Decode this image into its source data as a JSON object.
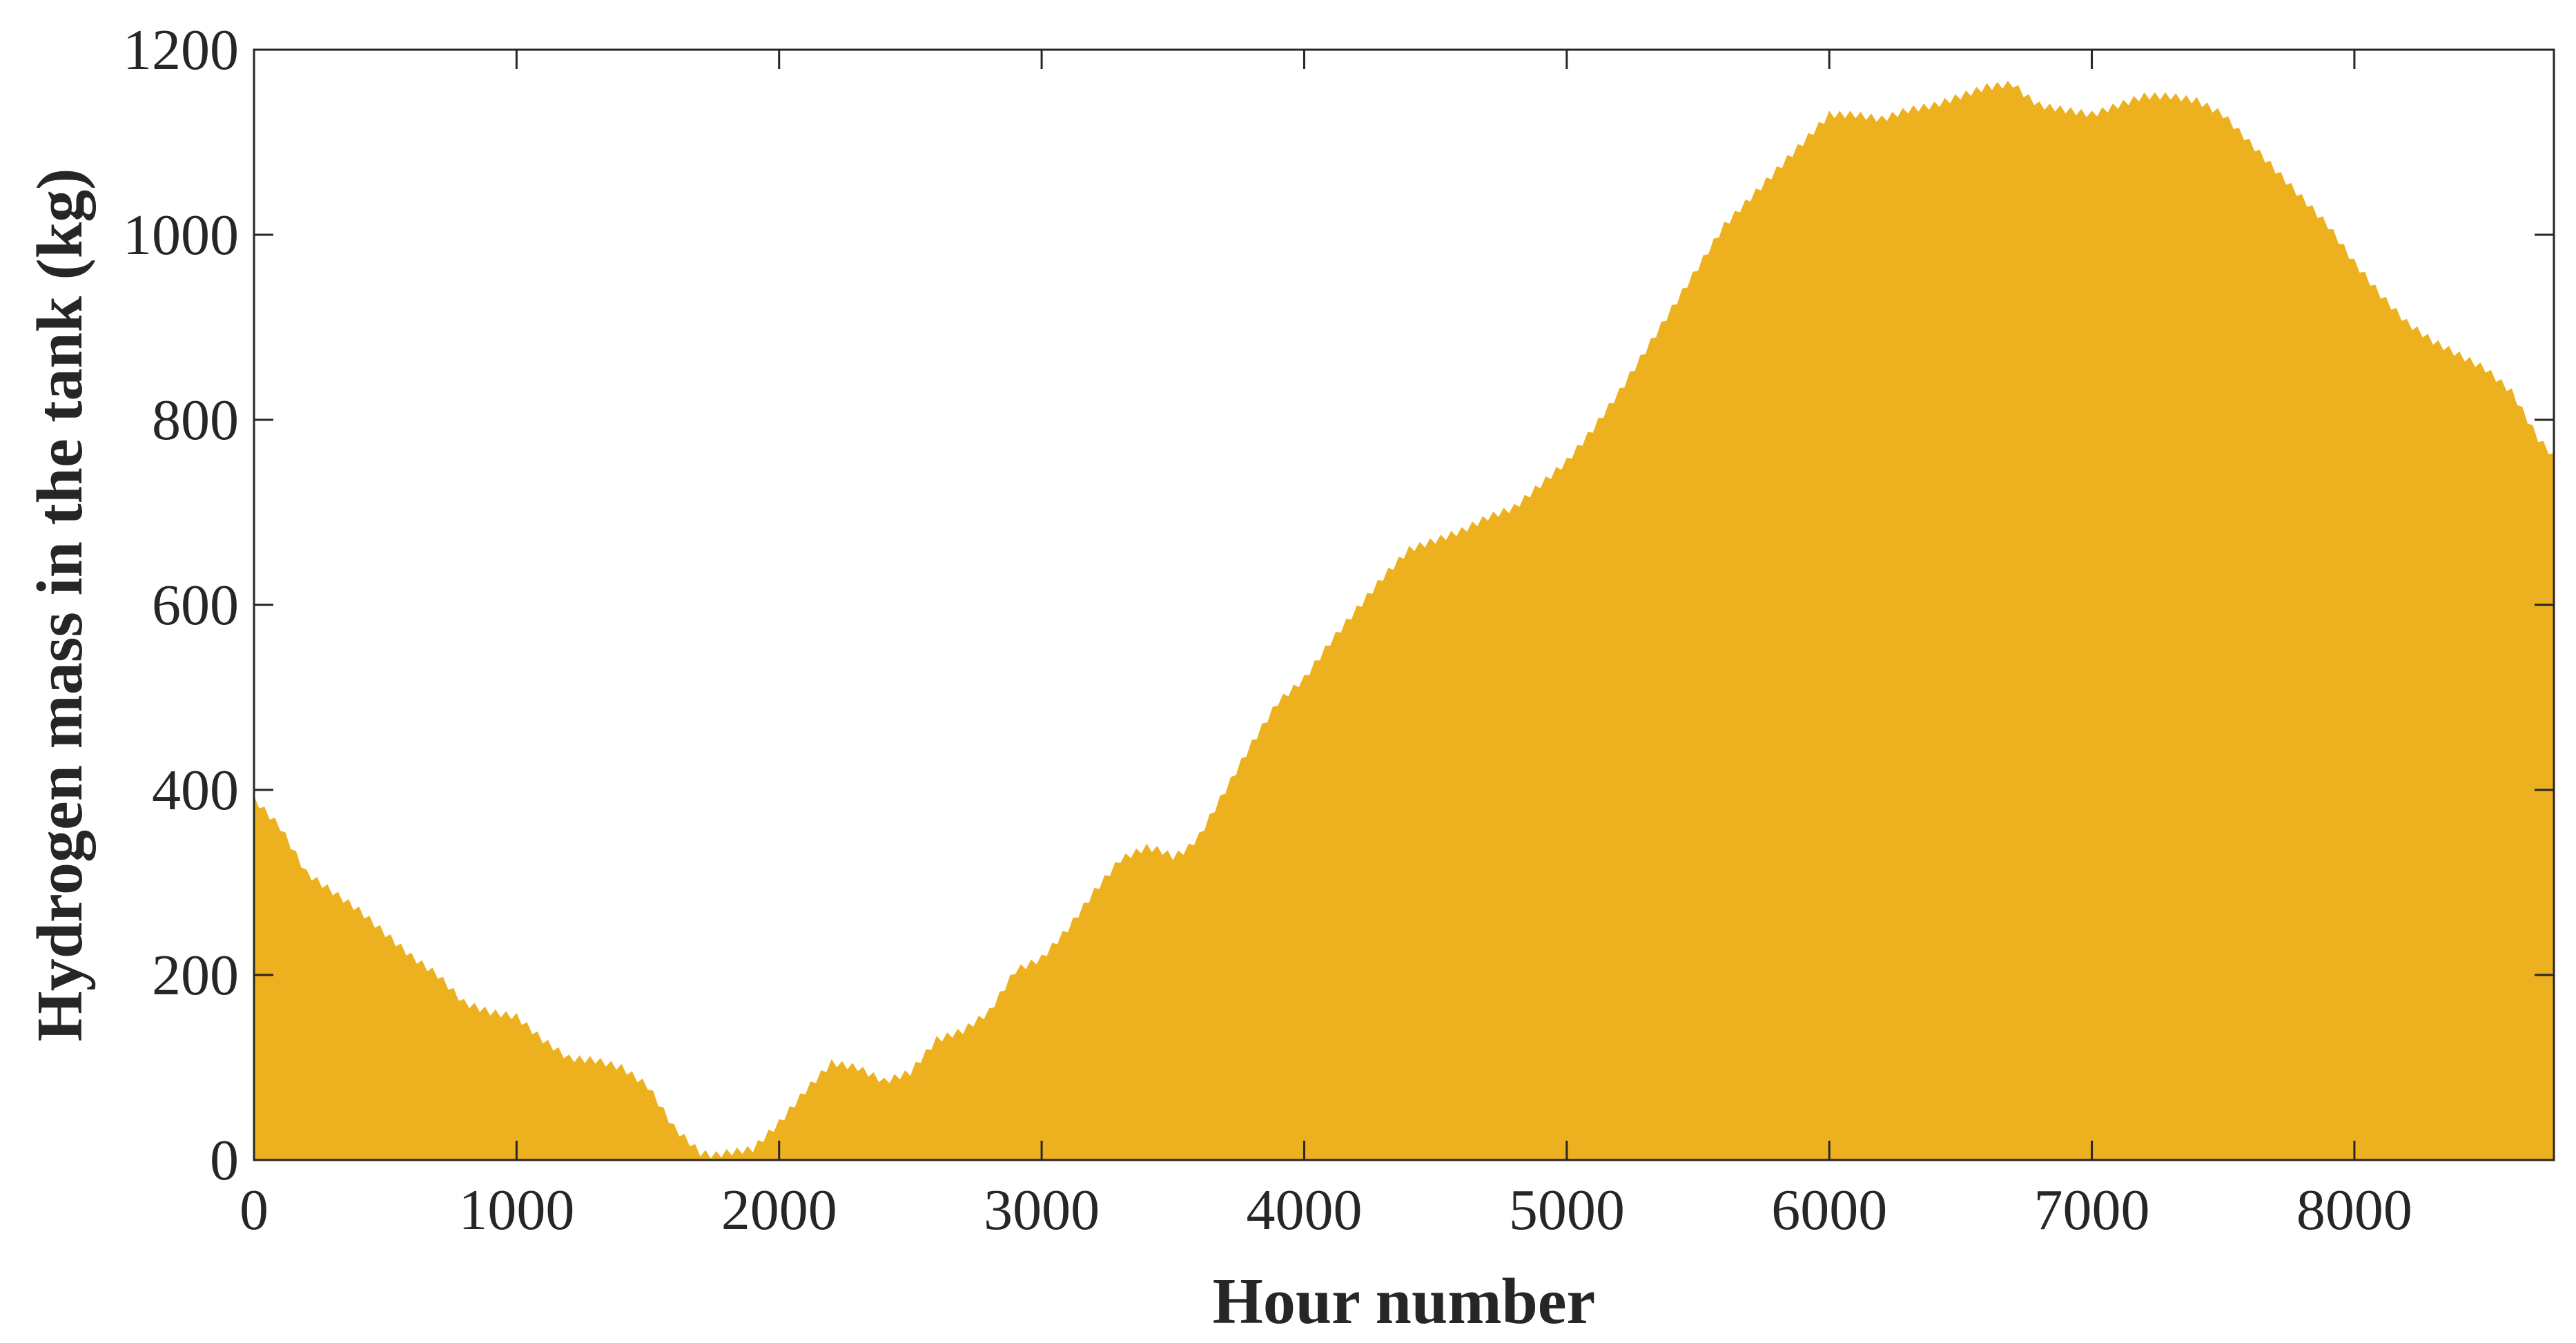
{
  "chart_data": {
    "type": "area",
    "xlabel": "Hour number",
    "ylabel": "Hydrogen mass in the tank (kg)",
    "xlim": [
      0,
      8760
    ],
    "ylim": [
      0,
      1200
    ],
    "x_ticks": [
      0,
      1000,
      2000,
      3000,
      4000,
      5000,
      6000,
      7000,
      8000
    ],
    "y_ticks": [
      0,
      200,
      400,
      600,
      800,
      1000,
      1200
    ],
    "grid": false,
    "legend": "none",
    "fill_color": "#EDB120",
    "series": [
      {
        "x": [
          0,
          100,
          200,
          300,
          400,
          500,
          600,
          700,
          800,
          900,
          1000,
          1100,
          1200,
          1300,
          1400,
          1500,
          1600,
          1700,
          1750,
          1800,
          1900,
          2000,
          2100,
          2200,
          2300,
          2400,
          2450,
          2500,
          2600,
          2700,
          2800,
          2900,
          3000,
          3100,
          3200,
          3300,
          3400,
          3450,
          3500,
          3550,
          3600,
          3700,
          3800,
          3900,
          4000,
          4100,
          4200,
          4300,
          4400,
          4500,
          4600,
          4700,
          4800,
          4900,
          5000,
          5100,
          5200,
          5300,
          5400,
          5500,
          5600,
          5700,
          5800,
          5900,
          6000,
          6100,
          6200,
          6300,
          6400,
          6500,
          6600,
          6700,
          6750,
          6800,
          6900,
          7000,
          7100,
          7200,
          7300,
          7400,
          7500,
          7600,
          7700,
          7800,
          7900,
          8000,
          8100,
          8200,
          8300,
          8400,
          8500,
          8600,
          8700,
          8760
        ],
        "y": [
          390,
          360,
          310,
          290,
          270,
          245,
          220,
          200,
          170,
          160,
          155,
          130,
          110,
          108,
          100,
          80,
          35,
          8,
          5,
          8,
          12,
          40,
          75,
          105,
          100,
          85,
          90,
          95,
          130,
          140,
          160,
          205,
          218,
          250,
          290,
          325,
          338,
          335,
          328,
          335,
          350,
          400,
          450,
          495,
          520,
          560,
          595,
          630,
          660,
          670,
          680,
          695,
          705,
          730,
          755,
          790,
          830,
          875,
          920,
          965,
          1010,
          1040,
          1070,
          1100,
          1130,
          1130,
          1125,
          1135,
          1140,
          1150,
          1160,
          1163,
          1150,
          1140,
          1135,
          1130,
          1140,
          1150,
          1150,
          1145,
          1130,
          1100,
          1070,
          1040,
          1010,
          970,
          935,
          905,
          885,
          870,
          855,
          830,
          780,
          760
        ]
      }
    ]
  }
}
